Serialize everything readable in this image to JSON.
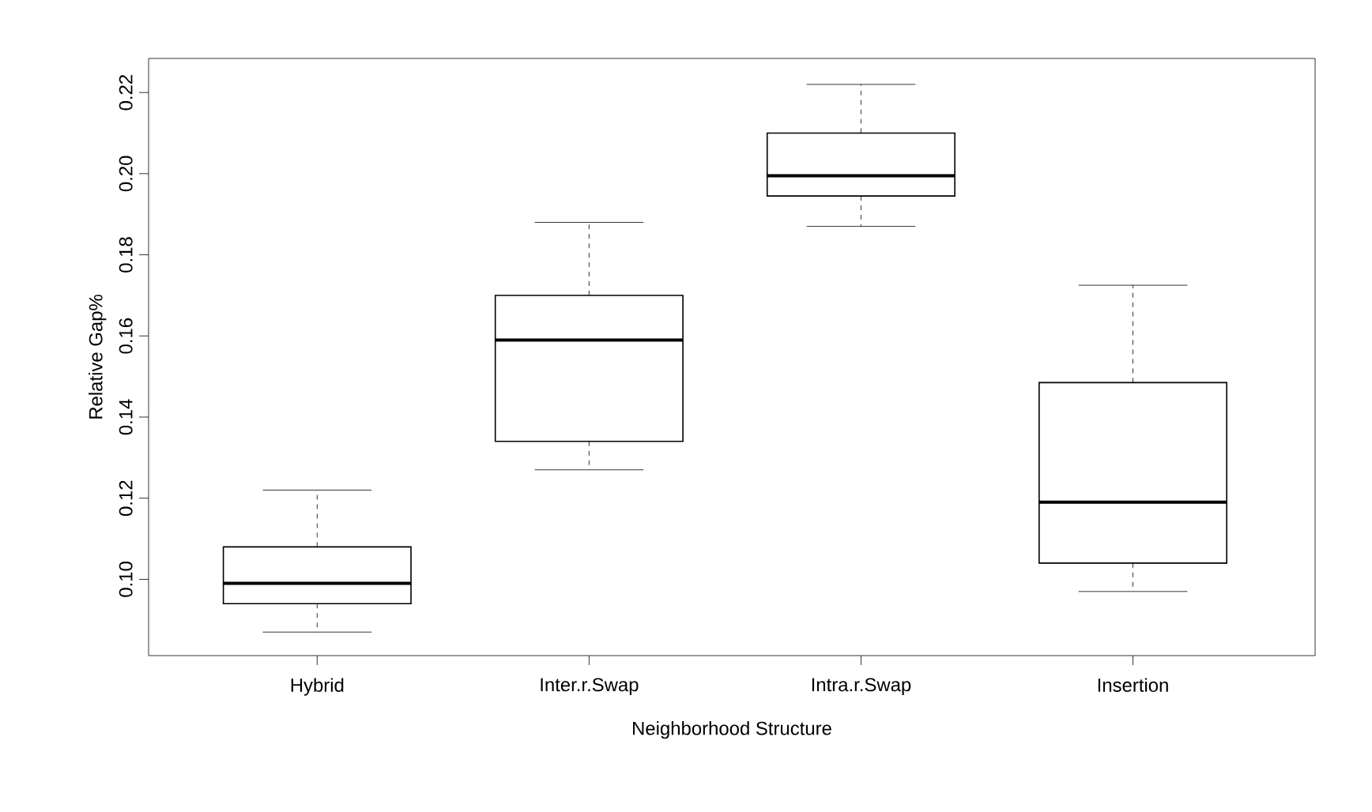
{
  "chart_data": {
    "type": "box",
    "xlabel": "Neighborhood Structure",
    "ylabel": "Relative Gap%",
    "categories": [
      "Hybrid",
      "Inter.r.Swap",
      "Intra.r.Swap",
      "Insertion"
    ],
    "boxes": [
      {
        "low": 0.087,
        "q1": 0.094,
        "median": 0.099,
        "q3": 0.108,
        "high": 0.122
      },
      {
        "low": 0.127,
        "q1": 0.134,
        "median": 0.159,
        "q3": 0.17,
        "high": 0.188
      },
      {
        "low": 0.187,
        "q1": 0.1945,
        "median": 0.1995,
        "q3": 0.21,
        "high": 0.222
      },
      {
        "low": 0.097,
        "q1": 0.104,
        "median": 0.119,
        "q3": 0.1485,
        "high": 0.1725
      }
    ],
    "ylim": [
      0.0812,
      0.2284
    ],
    "yticks": [
      {
        "value": 0.1,
        "label": "0.10"
      },
      {
        "value": 0.12,
        "label": "0.12"
      },
      {
        "value": 0.14,
        "label": "0.14"
      },
      {
        "value": 0.16,
        "label": "0.16"
      },
      {
        "value": 0.18,
        "label": "0.18"
      },
      {
        "value": 0.2,
        "label": "0.20"
      },
      {
        "value": 0.22,
        "label": "0.22"
      }
    ]
  }
}
